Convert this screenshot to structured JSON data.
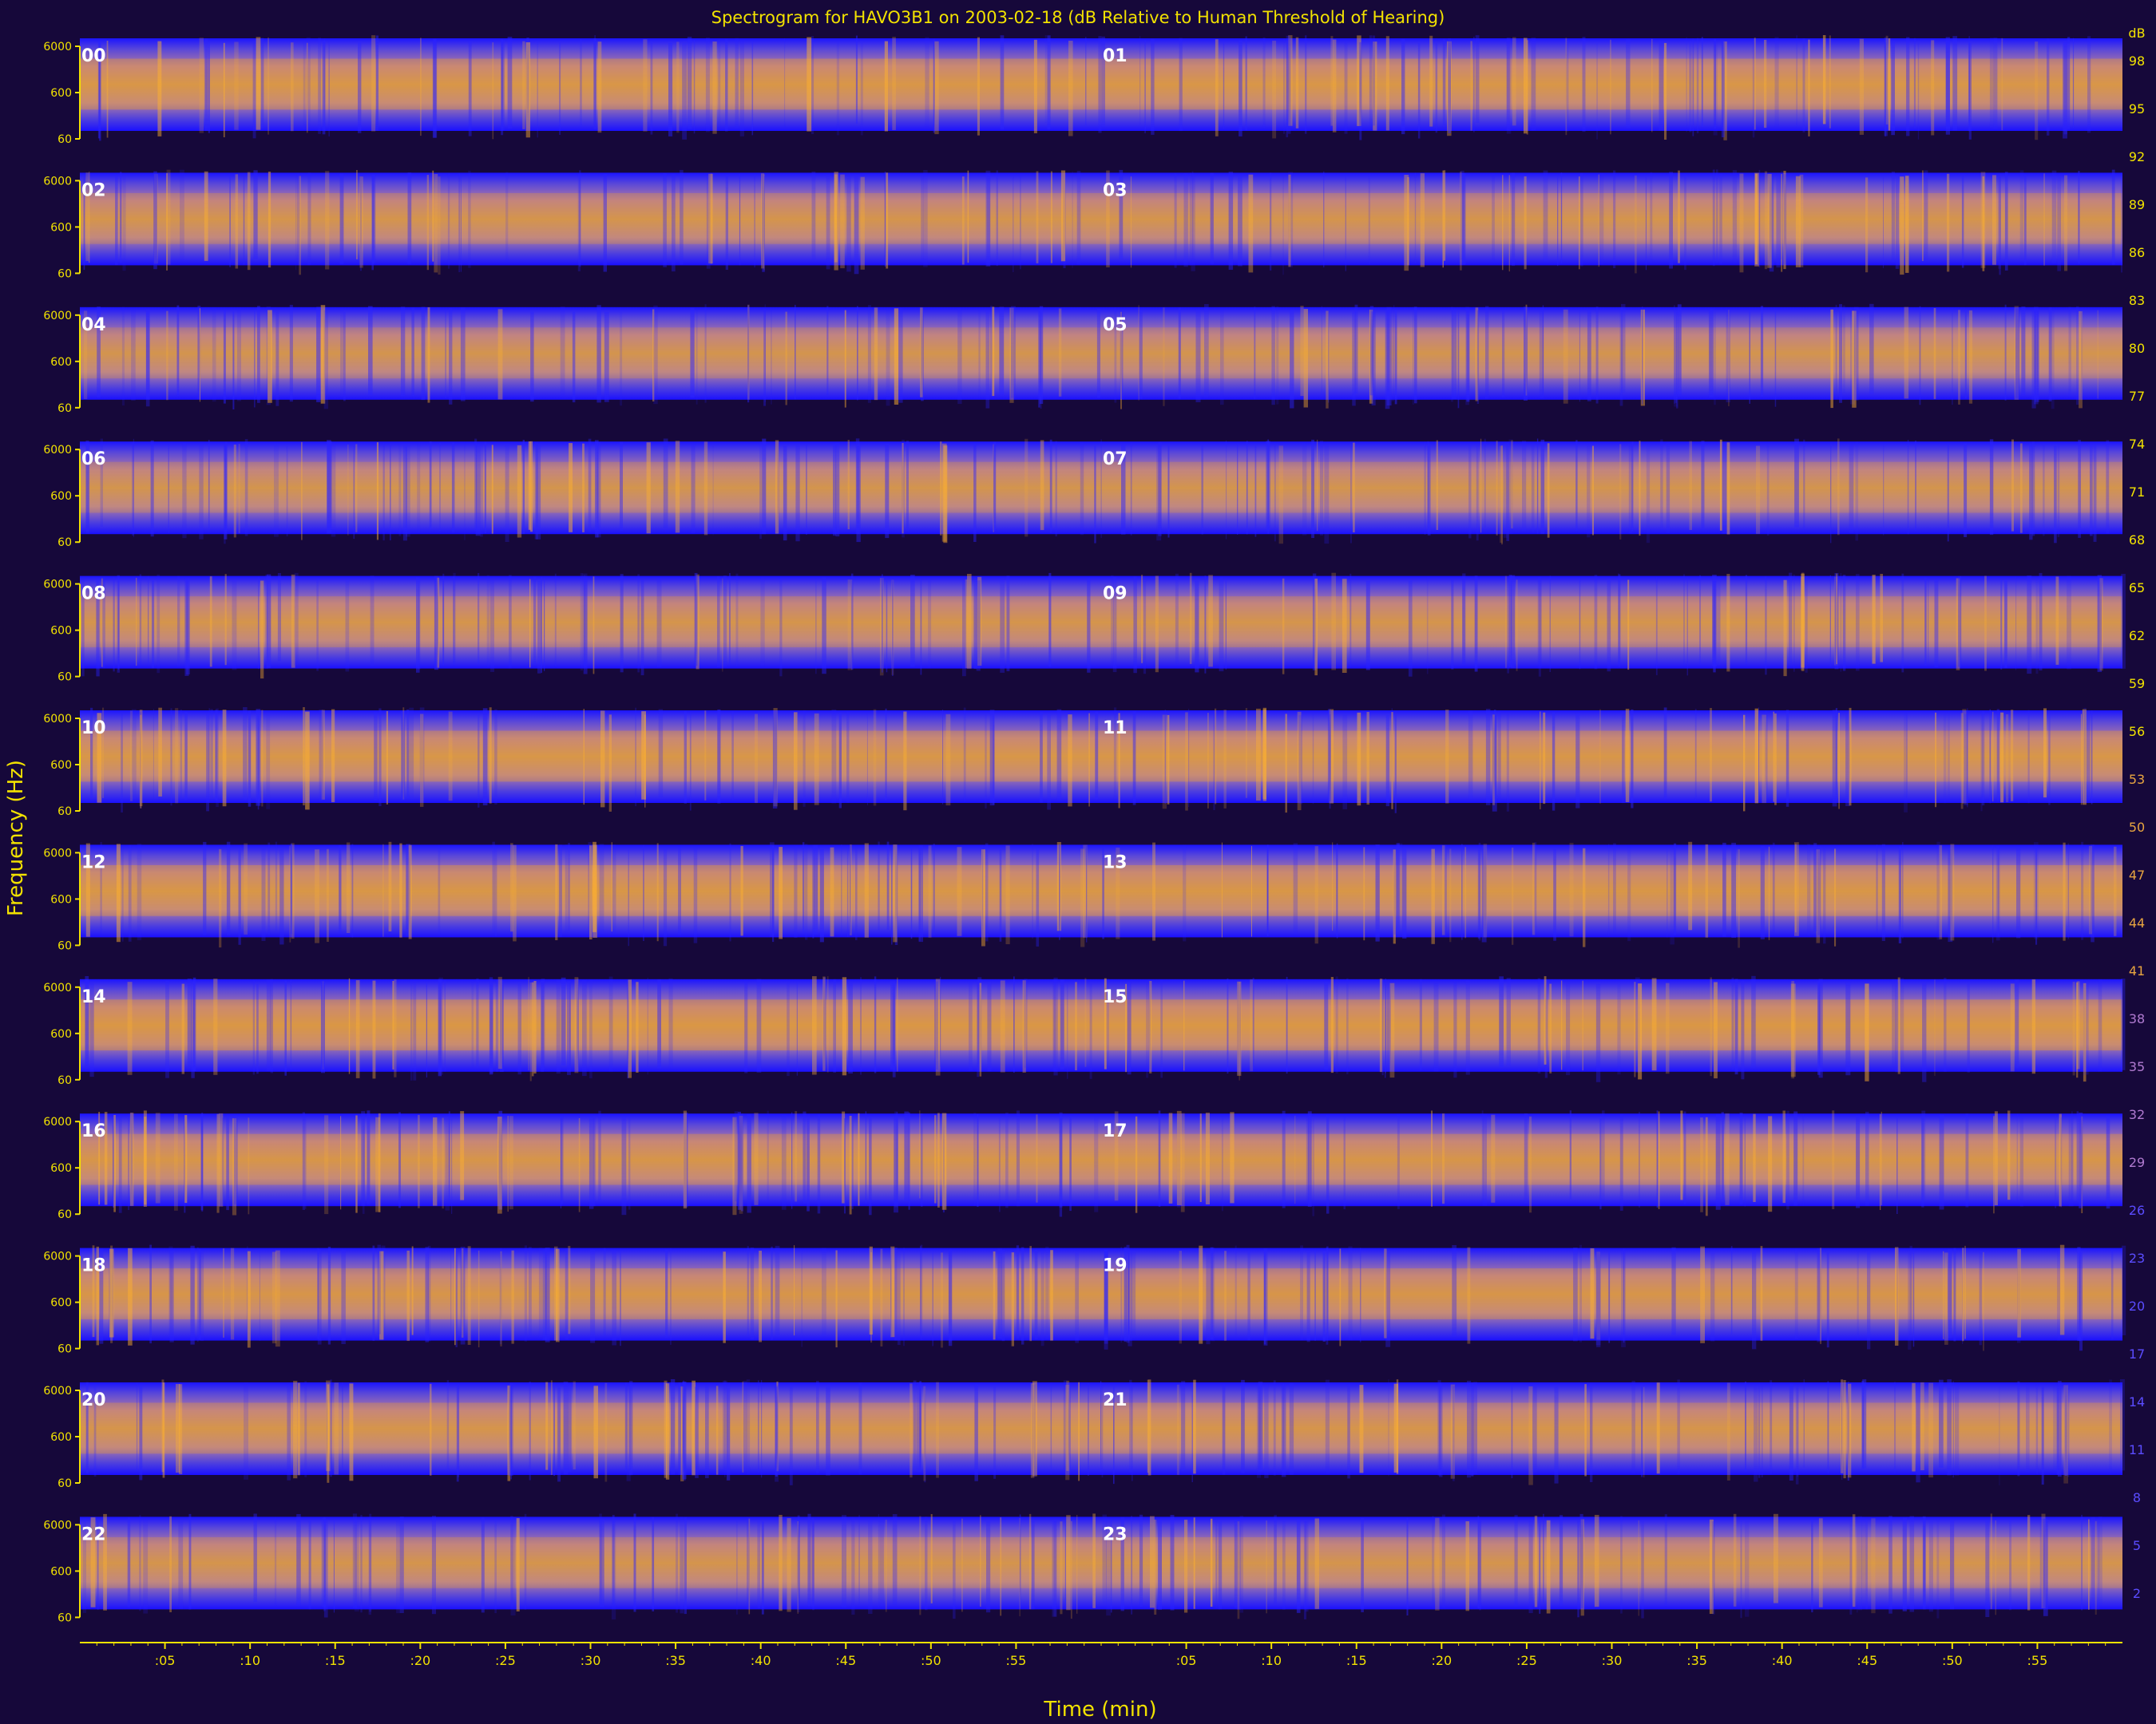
{
  "chart_data": {
    "type": "heatmap",
    "title": "Spectrogram for HAVO3B1 on 2003-02-18 (dB Relative to Human Threshold of Hearing)",
    "xlabel": "Time (min)",
    "ylabel": "Frequency (Hz)",
    "colorbar_unit": "dB",
    "x_ticks": [
      ":05",
      ":10",
      ":15",
      ":20",
      ":25",
      ":30",
      ":35",
      ":40",
      ":45",
      ":50",
      ":55",
      ":05",
      ":10",
      ":15",
      ":20",
      ":25",
      ":30",
      ":35",
      ":40",
      ":45",
      ":50",
      ":55"
    ],
    "y_ticks": [
      "6000",
      "600",
      "60"
    ],
    "hours": [
      "00",
      "01",
      "02",
      "03",
      "04",
      "05",
      "06",
      "07",
      "08",
      "09",
      "10",
      "11",
      "12",
      "13",
      "14",
      "15",
      "16",
      "17",
      "18",
      "19",
      "20",
      "21",
      "22",
      "23"
    ],
    "colorbar_values": [
      98,
      95,
      92,
      89,
      86,
      83,
      80,
      77,
      74,
      71,
      68,
      65,
      62,
      59,
      56,
      53,
      50,
      47,
      44,
      41,
      38,
      35,
      32,
      29,
      26,
      23,
      20,
      17,
      14,
      11,
      8,
      5,
      2
    ],
    "band_intensity": [
      0.78,
      0.62,
      0.52,
      0.56,
      0.62,
      0.76,
      0.83,
      0.86,
      0.72,
      0.7,
      0.66,
      0.6
    ],
    "colors": {
      "background": "#16083a",
      "low": "#0000ff",
      "mid": "#8a5fc0",
      "high": "#f5a320",
      "axis": "#f2e200"
    }
  }
}
